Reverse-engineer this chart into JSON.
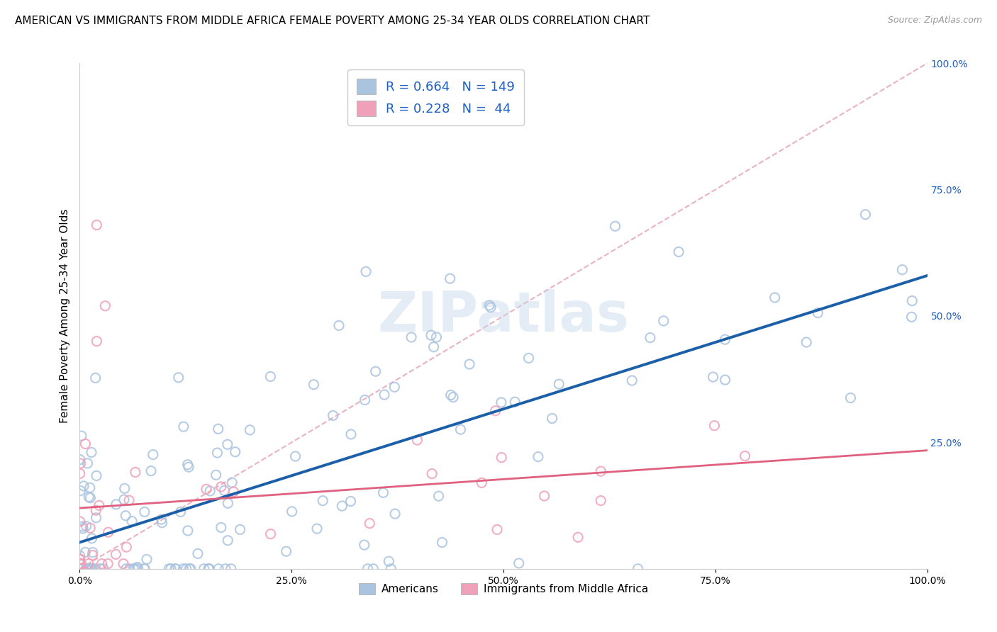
{
  "title": "AMERICAN VS IMMIGRANTS FROM MIDDLE AFRICA FEMALE POVERTY AMONG 25-34 YEAR OLDS CORRELATION CHART",
  "source": "Source: ZipAtlas.com",
  "ylabel": "Female Poverty Among 25-34 Year Olds",
  "xlim": [
    0.0,
    1.0
  ],
  "ylim": [
    0.0,
    1.0
  ],
  "xtick_labels": [
    "0.0%",
    "25.0%",
    "50.0%",
    "75.0%",
    "100.0%"
  ],
  "xtick_vals": [
    0.0,
    0.25,
    0.5,
    0.75,
    1.0
  ],
  "right_ytick_labels": [
    "25.0%",
    "50.0%",
    "75.0%",
    "100.0%"
  ],
  "right_ytick_vals": [
    0.25,
    0.5,
    0.75,
    1.0
  ],
  "americans_color": "#aac4e0",
  "immigrants_color": "#f0a0b8",
  "americans_edge_color": "#aac4e0",
  "immigrants_edge_color": "#f0a0b8",
  "americans_line_color": "#1a5fa8",
  "immigrants_line_color": "#e06080",
  "diagonal_color": "#e8aabb",
  "americans_R": 0.664,
  "americans_N": 149,
  "immigrants_R": 0.228,
  "immigrants_N": 44,
  "watermark": "ZIPatlas",
  "legend_label_americans": "Americans",
  "legend_label_immigrants": "Immigrants from Middle Africa",
  "title_fontsize": 11,
  "axis_label_fontsize": 11,
  "tick_fontsize": 10,
  "right_tick_color": "#2060c0",
  "legend_text_color": "#2060c0"
}
